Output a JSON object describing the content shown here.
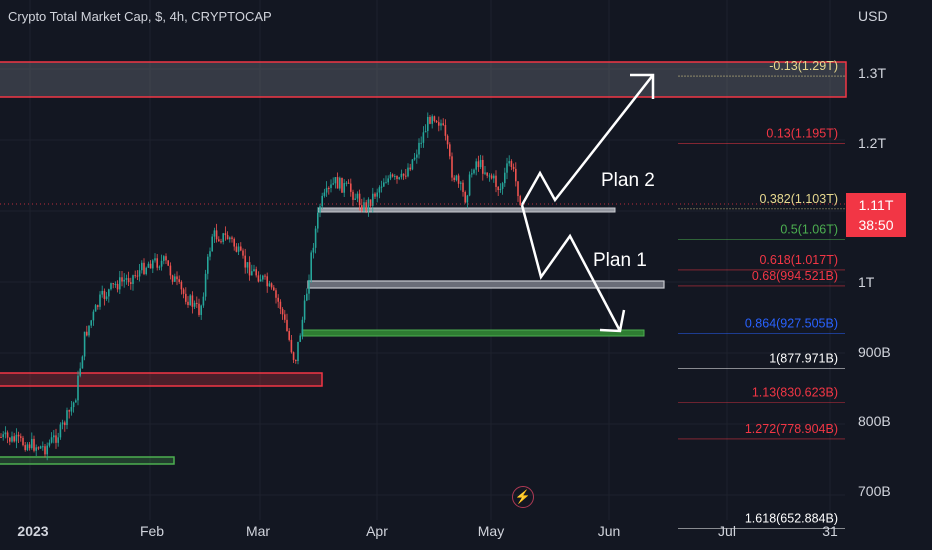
{
  "header": {
    "title": "Crypto Total Market Cap, $, 4h, CRYPTOCAP",
    "currency": "USD"
  },
  "price_badge": {
    "price": "1.11T",
    "countdown": "38:50"
  },
  "colors": {
    "background": "#131722",
    "up": "#26a69a",
    "down": "#ef5350",
    "fib_red": "#f23645",
    "fib_green": "#4caf50",
    "fib_blue": "#2962ff",
    "fib_yellow": "#e7d98f"
  },
  "chart_data": {
    "type": "candlestick",
    "symbol": "Crypto Total Market Cap",
    "interval": "4h",
    "x_ticks": [
      "2023",
      "Feb",
      "Mar",
      "Apr",
      "May",
      "Jun",
      "Jul",
      "31"
    ],
    "y_ticks": [
      "1.3T",
      "1.2T",
      "1T",
      "900B",
      "800B",
      "700B"
    ],
    "y_unit": "USD",
    "fib_levels": [
      {
        "label": "-0.13(1.29T)",
        "value": 1290000000000.0,
        "color": "#e7d98f"
      },
      {
        "label": "0.13(1.195T)",
        "value": 1195000000000.0,
        "color": "#f23645"
      },
      {
        "label": "0.382(1.103T)",
        "value": 1103000000000.0,
        "color": "#e7d98f"
      },
      {
        "label": "0.5(1.06T)",
        "value": 1060000000000.0,
        "color": "#4caf50"
      },
      {
        "label": "0.618(1.017T)",
        "value": 1017000000000.0,
        "color": "#f23645"
      },
      {
        "label": "0.68(994.521B)",
        "value": 994521000000.0,
        "color": "#f23645"
      },
      {
        "label": "0.864(927.505B)",
        "value": 927505000000.0,
        "color": "#2962ff"
      },
      {
        "label": "1(877.971B)",
        "value": 877971000000.0,
        "color": "#ffffff"
      },
      {
        "label": "1.13(830.623B)",
        "value": 830623000000.0,
        "color": "#f23645"
      },
      {
        "label": "1.272(778.904B)",
        "value": 778904000000.0,
        "color": "#f23645"
      },
      {
        "label": "1.618(652.884B)",
        "value": 652884000000.0,
        "color": "#ffffff"
      }
    ],
    "annotations": [
      {
        "text": "Plan 2"
      },
      {
        "text": "Plan 1"
      }
    ],
    "last_price": "1.11T"
  }
}
